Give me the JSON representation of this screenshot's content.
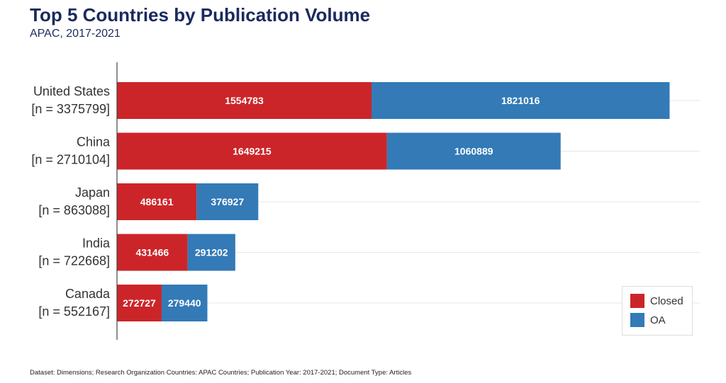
{
  "header": {
    "title": "Top 5 Countries by Publication Volume",
    "subtitle": "APAC, 2017-2021"
  },
  "footer": {
    "note": "Dataset: Dimensions; Research Organization Countries: APAC Countries; Publication Year: 2017-2021; Document Type: Articles"
  },
  "colors": {
    "closed": "#cc2529",
    "oa": "#337ab7",
    "grid": "#e6e6e6",
    "axis": "#444444"
  },
  "chart_data": {
    "type": "bar",
    "orientation": "horizontal",
    "stacked": true,
    "title": "Top 5 Countries by Publication Volume",
    "subtitle": "APAC, 2017-2021",
    "categories": [
      "United States",
      "China",
      "Japan",
      "India",
      "Canada"
    ],
    "category_counts": [
      "[n = 3375799]",
      "[n = 2710104]",
      "[n = 863088]",
      "[n = 722668]",
      "[n = 552167]"
    ],
    "series": [
      {
        "name": "Closed",
        "color": "#cc2529",
        "values": [
          1554783,
          1649215,
          486161,
          431466,
          272727
        ]
      },
      {
        "name": "OA",
        "color": "#337ab7",
        "values": [
          1821016,
          1060889,
          376927,
          291202,
          279440
        ]
      }
    ],
    "xlim": [
      0,
      3560000
    ],
    "grid": true,
    "legend_position": "bottom-right"
  }
}
